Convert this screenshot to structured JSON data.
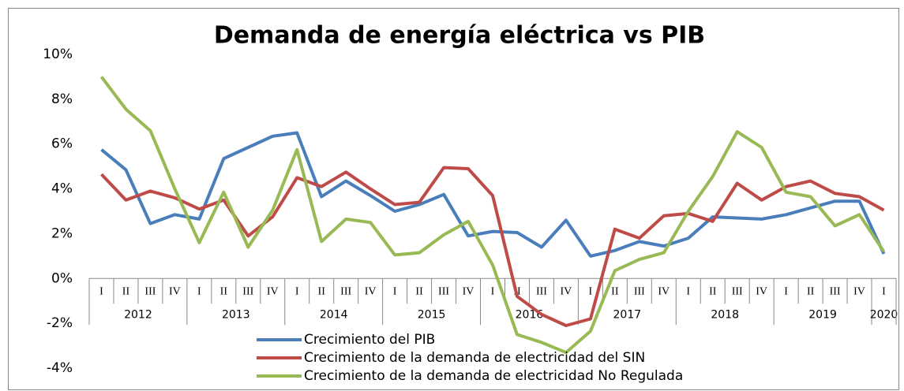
{
  "chart_data": {
    "type": "line",
    "title": "Demanda de energía eléctrica vs PIB",
    "category_groups": [
      {
        "label": "2012",
        "categories": [
          "I",
          "II",
          "III",
          "IV"
        ]
      },
      {
        "label": "2013",
        "categories": [
          "I",
          "II",
          "III",
          "IV"
        ]
      },
      {
        "label": "2014",
        "categories": [
          "I",
          "II",
          "III",
          "IV"
        ]
      },
      {
        "label": "2015",
        "categories": [
          "I",
          "II",
          "III",
          "IV"
        ]
      },
      {
        "label": "2016",
        "categories": [
          "I",
          "II",
          "III",
          "IV"
        ]
      },
      {
        "label": "2017",
        "categories": [
          "I",
          "II",
          "III",
          "IV"
        ]
      },
      {
        "label": "2018",
        "categories": [
          "I",
          "II",
          "III",
          "IV"
        ]
      },
      {
        "label": "2019",
        "categories": [
          "I",
          "II",
          "III",
          "IV"
        ]
      },
      {
        "label": "2020",
        "categories": [
          "I"
        ]
      }
    ],
    "series": [
      {
        "name": "Crecimiento del PIB",
        "color": "#4a7ebb",
        "values": [
          5.75,
          4.85,
          2.45,
          2.85,
          2.65,
          5.35,
          5.85,
          6.35,
          6.5,
          3.65,
          4.35,
          3.7,
          3.0,
          3.3,
          3.75,
          1.9,
          2.1,
          2.05,
          1.4,
          2.6,
          1.0,
          1.25,
          1.65,
          1.45,
          1.8,
          2.75,
          2.7,
          2.65,
          2.85,
          3.15,
          3.45,
          3.45,
          1.1
        ]
      },
      {
        "name": "Crecimiento de la demanda de electricidad del SIN",
        "color": "#be4b48",
        "values": [
          4.65,
          3.5,
          3.9,
          3.6,
          3.1,
          3.5,
          1.9,
          2.75,
          4.5,
          4.1,
          4.75,
          4.0,
          3.3,
          3.4,
          4.95,
          4.9,
          3.7,
          -0.8,
          -1.6,
          -2.1,
          -1.8,
          2.2,
          1.8,
          2.8,
          2.9,
          2.55,
          4.25,
          3.5,
          4.1,
          4.35,
          3.8,
          3.65,
          3.05
        ]
      },
      {
        "name": "Crecimiento de la demanda de electricidad No Regulada",
        "color": "#98b954",
        "values": [
          9.0,
          7.55,
          6.6,
          4.0,
          1.6,
          3.85,
          1.4,
          3.05,
          5.75,
          1.65,
          2.65,
          2.5,
          1.05,
          1.15,
          1.95,
          2.55,
          0.6,
          -2.5,
          -2.85,
          -3.3,
          -2.35,
          0.35,
          0.85,
          1.15,
          3.0,
          4.55,
          6.55,
          5.85,
          3.85,
          3.65,
          2.35,
          2.85,
          1.2
        ]
      }
    ],
    "ylim": [
      -4,
      10
    ],
    "yticks": [
      {
        "value": -4,
        "label": "-4%"
      },
      {
        "value": -2,
        "label": "-2%"
      },
      {
        "value": 0,
        "label": "0%"
      },
      {
        "value": 2,
        "label": "2%"
      },
      {
        "value": 4,
        "label": "4%"
      },
      {
        "value": 6,
        "label": "6%"
      },
      {
        "value": 8,
        "label": "8%"
      },
      {
        "value": 10,
        "label": "10%"
      }
    ],
    "grid": false
  }
}
